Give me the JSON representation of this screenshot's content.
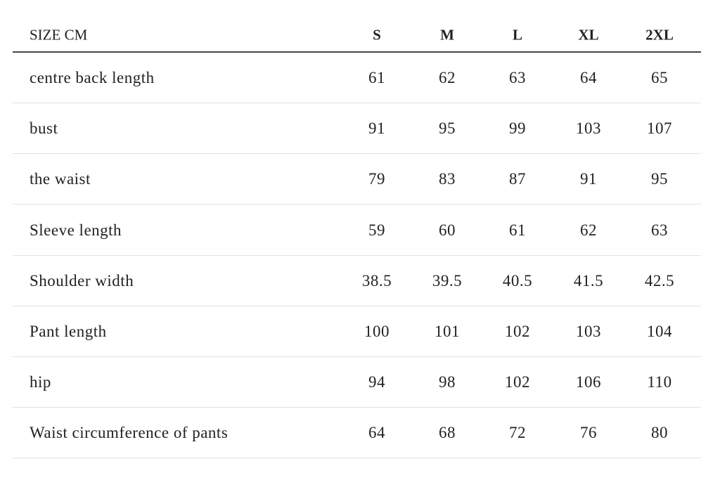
{
  "table": {
    "header": [
      "SIZE CM",
      "S",
      "M",
      "L",
      "XL",
      "2XL"
    ],
    "rows": [
      [
        "centre back length",
        "61",
        "62",
        "63",
        "64",
        "65"
      ],
      [
        "bust",
        "91",
        "95",
        "99",
        "103",
        "107"
      ],
      [
        "the waist",
        "79",
        "83",
        "87",
        "91",
        "95"
      ],
      [
        "Sleeve length",
        "59",
        "60",
        "61",
        "62",
        "63"
      ],
      [
        "Shoulder width",
        "38.5",
        "39.5",
        "40.5",
        "41.5",
        "42.5"
      ],
      [
        "Pant length",
        "100",
        "101",
        "102",
        "103",
        "104"
      ],
      [
        "hip",
        "94",
        "98",
        "102",
        "106",
        "110"
      ],
      [
        "Waist circumference of pants",
        "64",
        "68",
        "72",
        "76",
        "80"
      ]
    ]
  }
}
